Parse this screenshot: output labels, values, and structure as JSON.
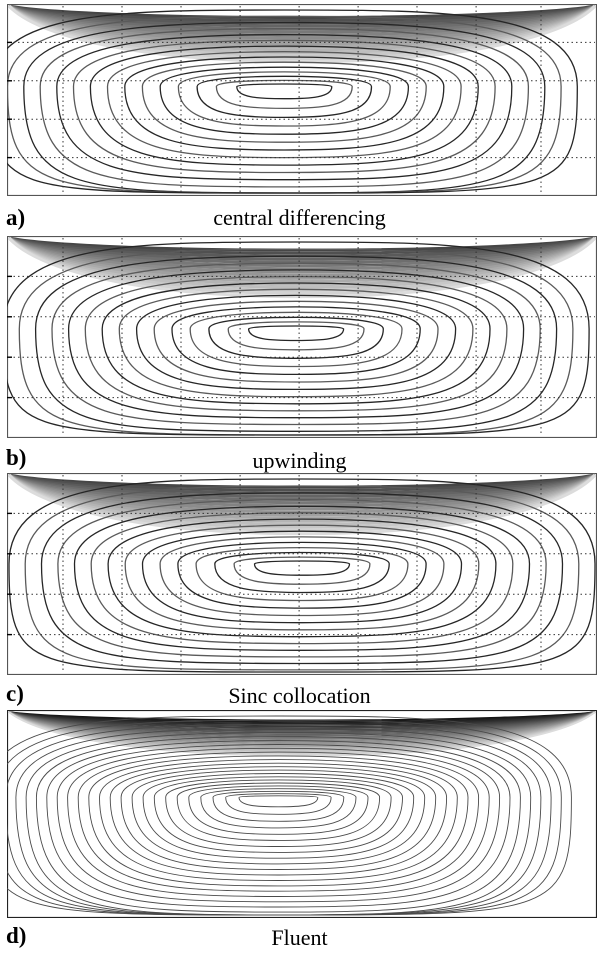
{
  "figure": {
    "panels": [
      {
        "label": "a)",
        "caption": "central differencing",
        "style": "matlab"
      },
      {
        "label": "b)",
        "caption": "upwinding",
        "style": "matlab"
      },
      {
        "label": "c)",
        "caption": "Sinc collocation",
        "style": "matlab"
      },
      {
        "label": "d)",
        "caption": "Fluent",
        "style": "fluent"
      }
    ]
  }
}
